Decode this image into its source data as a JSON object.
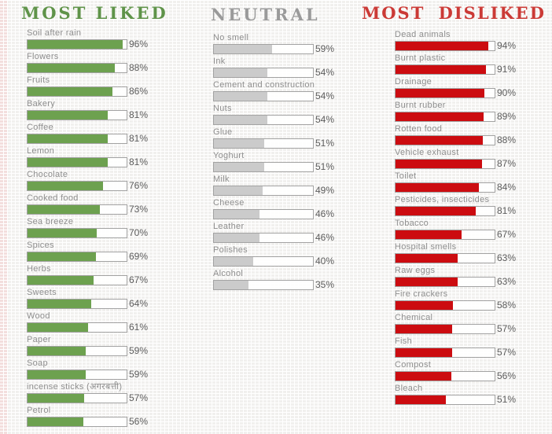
{
  "page": {
    "background_hex": "#fdfdfc",
    "texture": "fine dotted-grid paper",
    "track_border_hex": "#a3a3a3",
    "label_text_hex": "#8e8e8e",
    "value_text_hex": "#5c5c5c"
  },
  "columns": [
    {
      "id": "most-liked",
      "title": "MOST LIKED",
      "title_color": "#5f9349",
      "bar_color": "#6da14f",
      "items": [
        {
          "label": "Soil after rain",
          "value": 96,
          "pct": "96%"
        },
        {
          "label": "Flowers",
          "value": 88,
          "pct": "88%"
        },
        {
          "label": "Fruits",
          "value": 86,
          "pct": "86%"
        },
        {
          "label": "Bakery",
          "value": 81,
          "pct": "81%"
        },
        {
          "label": "Coffee",
          "value": 81,
          "pct": "81%"
        },
        {
          "label": "Lemon",
          "value": 81,
          "pct": "81%"
        },
        {
          "label": "Chocolate",
          "value": 76,
          "pct": "76%"
        },
        {
          "label": "Cooked food",
          "value": 73,
          "pct": "73%"
        },
        {
          "label": "Sea breeze",
          "value": 70,
          "pct": "70%"
        },
        {
          "label": "Spices",
          "value": 69,
          "pct": "69%"
        },
        {
          "label": "Herbs",
          "value": 67,
          "pct": "67%"
        },
        {
          "label": "Sweets",
          "value": 64,
          "pct": "64%"
        },
        {
          "label": "Wood",
          "value": 61,
          "pct": "61%"
        },
        {
          "label": "Paper",
          "value": 59,
          "pct": "59%"
        },
        {
          "label": "Soap",
          "value": 59,
          "pct": "59%"
        },
        {
          "label": "incense sticks (अगरबत्ती)",
          "value": 57,
          "pct": "57%"
        },
        {
          "label": "Petrol",
          "value": 56,
          "pct": "56%"
        }
      ]
    },
    {
      "id": "neutral",
      "title": "NEUTRAL",
      "title_color": "#9a9a9a",
      "bar_color": "#cbcbcb",
      "items": [
        {
          "label": "No smell",
          "value": 59,
          "pct": "59%"
        },
        {
          "label": "Ink",
          "value": 54,
          "pct": "54%"
        },
        {
          "label": "Cement and construction",
          "value": 54,
          "pct": "54%"
        },
        {
          "label": "Nuts",
          "value": 54,
          "pct": "54%"
        },
        {
          "label": "Glue",
          "value": 51,
          "pct": "51%"
        },
        {
          "label": "Yoghurt",
          "value": 51,
          "pct": "51%"
        },
        {
          "label": "Milk",
          "value": 49,
          "pct": "49%"
        },
        {
          "label": "Cheese",
          "value": 46,
          "pct": "46%"
        },
        {
          "label": "Leather",
          "value": 46,
          "pct": "46%"
        },
        {
          "label": "Polishes",
          "value": 40,
          "pct": "40%"
        },
        {
          "label": "Alcohol",
          "value": 35,
          "pct": "35%"
        }
      ]
    },
    {
      "id": "most-disliked",
      "title": "MOST DISLIKED",
      "title_color": "#cb3a36",
      "bar_color": "#cc0c10",
      "items": [
        {
          "label": "Dead animals",
          "value": 94,
          "pct": "94%"
        },
        {
          "label": "Burnt plastic",
          "value": 91,
          "pct": "91%"
        },
        {
          "label": "Drainage",
          "value": 90,
          "pct": "90%"
        },
        {
          "label": "Burnt rubber",
          "value": 89,
          "pct": "89%"
        },
        {
          "label": "Rotten food",
          "value": 88,
          "pct": "88%"
        },
        {
          "label": "Vehicle exhaust",
          "value": 87,
          "pct": "87%"
        },
        {
          "label": "Toilet",
          "value": 84,
          "pct": "84%"
        },
        {
          "label": "Pesticides, insecticides",
          "value": 81,
          "pct": "81%"
        },
        {
          "label": "Tobacco",
          "value": 67,
          "pct": "67%"
        },
        {
          "label": "Hospital smells",
          "value": 63,
          "pct": "63%"
        },
        {
          "label": "Raw eggs",
          "value": 63,
          "pct": "63%"
        },
        {
          "label": "Fire crackers",
          "value": 58,
          "pct": "58%"
        },
        {
          "label": "Chemical",
          "value": 57,
          "pct": "57%"
        },
        {
          "label": "Fish",
          "value": 57,
          "pct": "57%"
        },
        {
          "label": "Compost",
          "value": 56,
          "pct": "56%"
        },
        {
          "label": "Bleach",
          "value": 51,
          "pct": "51%"
        }
      ]
    }
  ],
  "chart_data": [
    {
      "type": "bar",
      "orientation": "horizontal",
      "title": "MOST LIKED",
      "categories": [
        "Soil after rain",
        "Flowers",
        "Fruits",
        "Bakery",
        "Coffee",
        "Lemon",
        "Chocolate",
        "Cooked food",
        "Sea breeze",
        "Spices",
        "Herbs",
        "Sweets",
        "Wood",
        "Paper",
        "Soap",
        "incense sticks (अगरबत्ती)",
        "Petrol"
      ],
      "values": [
        96,
        88,
        86,
        81,
        81,
        81,
        76,
        73,
        70,
        69,
        67,
        64,
        61,
        59,
        59,
        57,
        56
      ],
      "value_unit": "%",
      "xlim": [
        0,
        100
      ],
      "bar_color": "#6da14f",
      "grid": false,
      "data_labels": "outside-end"
    },
    {
      "type": "bar",
      "orientation": "horizontal",
      "title": "NEUTRAL",
      "categories": [
        "No smell",
        "Ink",
        "Cement and construction",
        "Nuts",
        "Glue",
        "Yoghurt",
        "Milk",
        "Cheese",
        "Leather",
        "Polishes",
        "Alcohol"
      ],
      "values": [
        59,
        54,
        54,
        54,
        51,
        51,
        49,
        46,
        46,
        40,
        35
      ],
      "value_unit": "%",
      "xlim": [
        0,
        100
      ],
      "bar_color": "#cbcbcb",
      "grid": false,
      "data_labels": "outside-end"
    },
    {
      "type": "bar",
      "orientation": "horizontal",
      "title": "MOST DISLIKED",
      "categories": [
        "Dead animals",
        "Burnt plastic",
        "Drainage",
        "Burnt rubber",
        "Rotten food",
        "Vehicle exhaust",
        "Toilet",
        "Pesticides, insecticides",
        "Tobacco",
        "Hospital smells",
        "Raw eggs",
        "Fire crackers",
        "Chemical",
        "Fish",
        "Compost",
        "Bleach"
      ],
      "values": [
        94,
        91,
        90,
        89,
        88,
        87,
        84,
        81,
        67,
        63,
        63,
        58,
        57,
        57,
        56,
        51
      ],
      "value_unit": "%",
      "xlim": [
        0,
        100
      ],
      "bar_color": "#cc0c10",
      "grid": false,
      "data_labels": "outside-end"
    }
  ]
}
